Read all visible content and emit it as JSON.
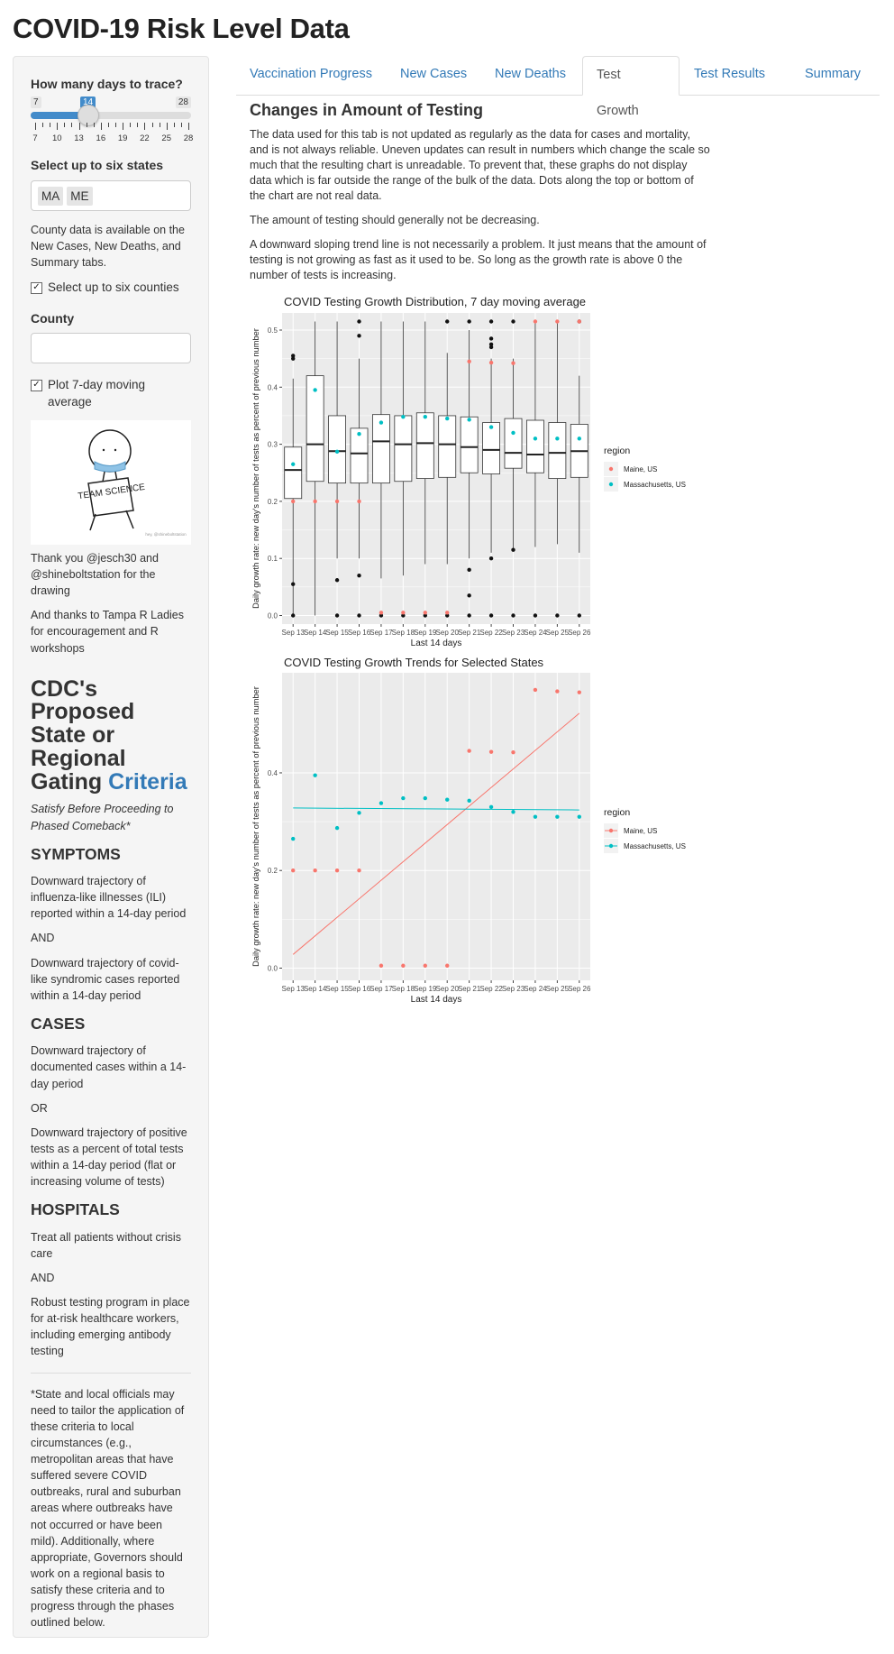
{
  "app": {
    "title": "COVID-19 Risk Level Data"
  },
  "sidebar": {
    "days_label": "How many days to trace?",
    "slider": {
      "min": "7",
      "max": "28",
      "value": "14",
      "ticks": [
        "7",
        "10",
        "13",
        "16",
        "19",
        "22",
        "25",
        "28"
      ]
    },
    "states_label": "Select up to six states",
    "states": [
      "MA",
      "ME"
    ],
    "county_note": "County data is available on the New Cases, New Deaths, and Summary tabs.",
    "counties_checkbox": "Select up to six counties",
    "county_label": "County",
    "moving_avg_checkbox": "Plot 7-day moving average",
    "drawing_text": {
      "sign": "TEAM SCIENCE",
      "credit": "hey, @shineboltstation"
    },
    "thanks1": "Thank you @jesch30 and @shineboltstation for the drawing",
    "thanks2": "And thanks to Tampa R Ladies for encouragement and R workshops",
    "cdc_heading_prefix": "CDC's Proposed State or Regional Gating",
    "cdc_heading_link": "Criteria",
    "cdc_subtitle": "Satisfy Before Proceeding to Phased Comeback*",
    "symptoms": {
      "title": "SYMPTOMS",
      "p1": "Downward trajectory of influenza-like illnesses (ILI) reported within a 14-day period",
      "and": "AND",
      "p2": "Downward trajectory of covid-like syndromic cases reported within a 14-day period"
    },
    "cases": {
      "title": "CASES",
      "p1": "Downward trajectory of documented cases within a 14-day period",
      "or": "OR",
      "p2": "Downward trajectory of positive tests as a percent of total tests within a 14-day period (flat or increasing volume of tests)"
    },
    "hospitals": {
      "title": "HOSPITALS",
      "p1": "Treat all patients without crisis care",
      "and": "AND",
      "p2": "Robust testing program in place for at-risk healthcare workers, including emerging antibody testing"
    },
    "footnote": "*State and local officials may need to tailor the application of these criteria to local circumstances (e.g., metropolitan areas that have suffered severe COVID outbreaks, rural and suburban areas where outbreaks have not occurred or have been mild). Additionally, where appropriate, Governors should work on a regional basis to satisfy these criteria and to progress through the phases outlined below."
  },
  "tabs": [
    "Vaccination Progress",
    "New Cases",
    "New Deaths",
    "Test Growth",
    "Test Results",
    "Summary"
  ],
  "active_tab": "Test Growth",
  "main": {
    "heading": "Changes in Amount of Testing",
    "p1": "The data used for this tab is not updated as regularly as the data for cases and mortality, and is not always reliable. Uneven updates can result in numbers which change the scale so much that the resulting chart is unreadable. To prevent that, these graphs do not display data which is far outside the range of the bulk of the data. Dots along the top or bottom of the chart are not real data.",
    "p2": "The amount of testing should generally not be decreasing.",
    "p3": "A downward sloping trend line is not necessarily a problem. It just means that the amount of testing is not growing as fast as it used to be. So long as the growth rate is above 0 the number of tests is increasing."
  },
  "colors": {
    "maine": "#F8766D",
    "massachusetts": "#00BFC4",
    "panel": "#EBEBEB",
    "accent": "#428bca",
    "link": "#337ab7"
  },
  "chart_data": [
    {
      "type": "box",
      "title": "COVID Testing Growth Distribution, 7 day moving average",
      "xlabel": "Last 14 days",
      "ylabel": "Daily growth rate: new day's number of tests as percent of previous number",
      "categories": [
        "Sep 13",
        "Sep 14",
        "Sep 15",
        "Sep 16",
        "Sep 17",
        "Sep 18",
        "Sep 19",
        "Sep 20",
        "Sep 21",
        "Sep 22",
        "Sep 23",
        "Sep 24",
        "Sep 25",
        "Sep 26"
      ],
      "ylim": [
        -0.015,
        0.53
      ],
      "yticks": [
        0.0,
        0.1,
        0.2,
        0.3,
        0.4,
        0.5
      ],
      "boxes": [
        {
          "lo": 0.0,
          "q1": 0.205,
          "med": 0.255,
          "q3": 0.295,
          "hi": 0.415,
          "outliers": [
            0.455,
            0.45,
            0.055,
            0.0
          ]
        },
        {
          "lo": 0.0,
          "q1": 0.235,
          "med": 0.3,
          "q3": 0.42,
          "hi": 0.515,
          "outliers": []
        },
        {
          "lo": 0.1,
          "q1": 0.232,
          "med": 0.288,
          "q3": 0.35,
          "hi": 0.515,
          "outliers": [
            0.062,
            0.0
          ]
        },
        {
          "lo": 0.1,
          "q1": 0.232,
          "med": 0.284,
          "q3": 0.328,
          "hi": 0.45,
          "outliers": [
            0.515,
            0.49,
            0.07,
            0.0
          ]
        },
        {
          "lo": 0.065,
          "q1": 0.232,
          "med": 0.305,
          "q3": 0.352,
          "hi": 0.515,
          "outliers": [
            0.0
          ]
        },
        {
          "lo": 0.07,
          "q1": 0.235,
          "med": 0.3,
          "q3": 0.35,
          "hi": 0.515,
          "outliers": [
            0.0
          ]
        },
        {
          "lo": 0.09,
          "q1": 0.24,
          "med": 0.302,
          "q3": 0.355,
          "hi": 0.515,
          "outliers": [
            0.0
          ]
        },
        {
          "lo": 0.09,
          "q1": 0.242,
          "med": 0.3,
          "q3": 0.35,
          "hi": 0.46,
          "outliers": [
            0.515,
            0.0
          ]
        },
        {
          "lo": 0.1,
          "q1": 0.25,
          "med": 0.295,
          "q3": 0.348,
          "hi": 0.5,
          "outliers": [
            0.515,
            0.08,
            0.035,
            0.0
          ]
        },
        {
          "lo": 0.11,
          "q1": 0.248,
          "med": 0.29,
          "q3": 0.338,
          "hi": 0.45,
          "outliers": [
            0.515,
            0.485,
            0.475,
            0.47,
            0.1,
            0.0
          ]
        },
        {
          "lo": 0.115,
          "q1": 0.258,
          "med": 0.285,
          "q3": 0.345,
          "hi": 0.45,
          "outliers": [
            0.515,
            0.115,
            0.0
          ]
        },
        {
          "lo": 0.12,
          "q1": 0.25,
          "med": 0.282,
          "q3": 0.342,
          "hi": 0.515,
          "outliers": [
            0.0
          ]
        },
        {
          "lo": 0.125,
          "q1": 0.24,
          "med": 0.285,
          "q3": 0.338,
          "hi": 0.515,
          "outliers": [
            0.0
          ]
        },
        {
          "lo": 0.11,
          "q1": 0.242,
          "med": 0.288,
          "q3": 0.335,
          "hi": 0.42,
          "outliers": [
            0.515,
            0.0
          ]
        }
      ],
      "series": [
        {
          "name": "Maine, US",
          "values": [
            0.2,
            0.2,
            0.2,
            0.2,
            0.005,
            0.005,
            0.005,
            0.005,
            0.445,
            0.443,
            0.442,
            0.515,
            0.515,
            0.515
          ]
        },
        {
          "name": "Massachusetts, US",
          "values": [
            0.265,
            0.395,
            0.287,
            0.318,
            0.338,
            0.348,
            0.348,
            0.345,
            0.343,
            0.33,
            0.32,
            0.31,
            0.31,
            0.31
          ]
        }
      ],
      "legend_title": "region"
    },
    {
      "type": "scatter",
      "title": "COVID Testing Growth Trends for Selected States",
      "xlabel": "Last 14 days",
      "ylabel": "Daily growth rate: new day's number of tests as percent of previous number",
      "categories": [
        "Sep 13",
        "Sep 14",
        "Sep 15",
        "Sep 16",
        "Sep 17",
        "Sep 18",
        "Sep 19",
        "Sep 20",
        "Sep 21",
        "Sep 22",
        "Sep 23",
        "Sep 24",
        "Sep 25",
        "Sep 26"
      ],
      "ylim": [
        -0.025,
        0.605
      ],
      "yticks": [
        0.0,
        0.2,
        0.4
      ],
      "series": [
        {
          "name": "Maine, US",
          "values": [
            0.2,
            0.2,
            0.2,
            0.2,
            0.005,
            0.005,
            0.005,
            0.005,
            0.445,
            0.443,
            0.442,
            0.57,
            0.567,
            0.565
          ],
          "trend": [
            0.028,
            0.522
          ]
        },
        {
          "name": "Massachusetts, US",
          "values": [
            0.265,
            0.395,
            0.287,
            0.318,
            0.338,
            0.348,
            0.348,
            0.345,
            0.343,
            0.33,
            0.32,
            0.31,
            0.31,
            0.31
          ],
          "trend": [
            0.328,
            0.324
          ]
        }
      ],
      "legend_title": "region"
    }
  ]
}
